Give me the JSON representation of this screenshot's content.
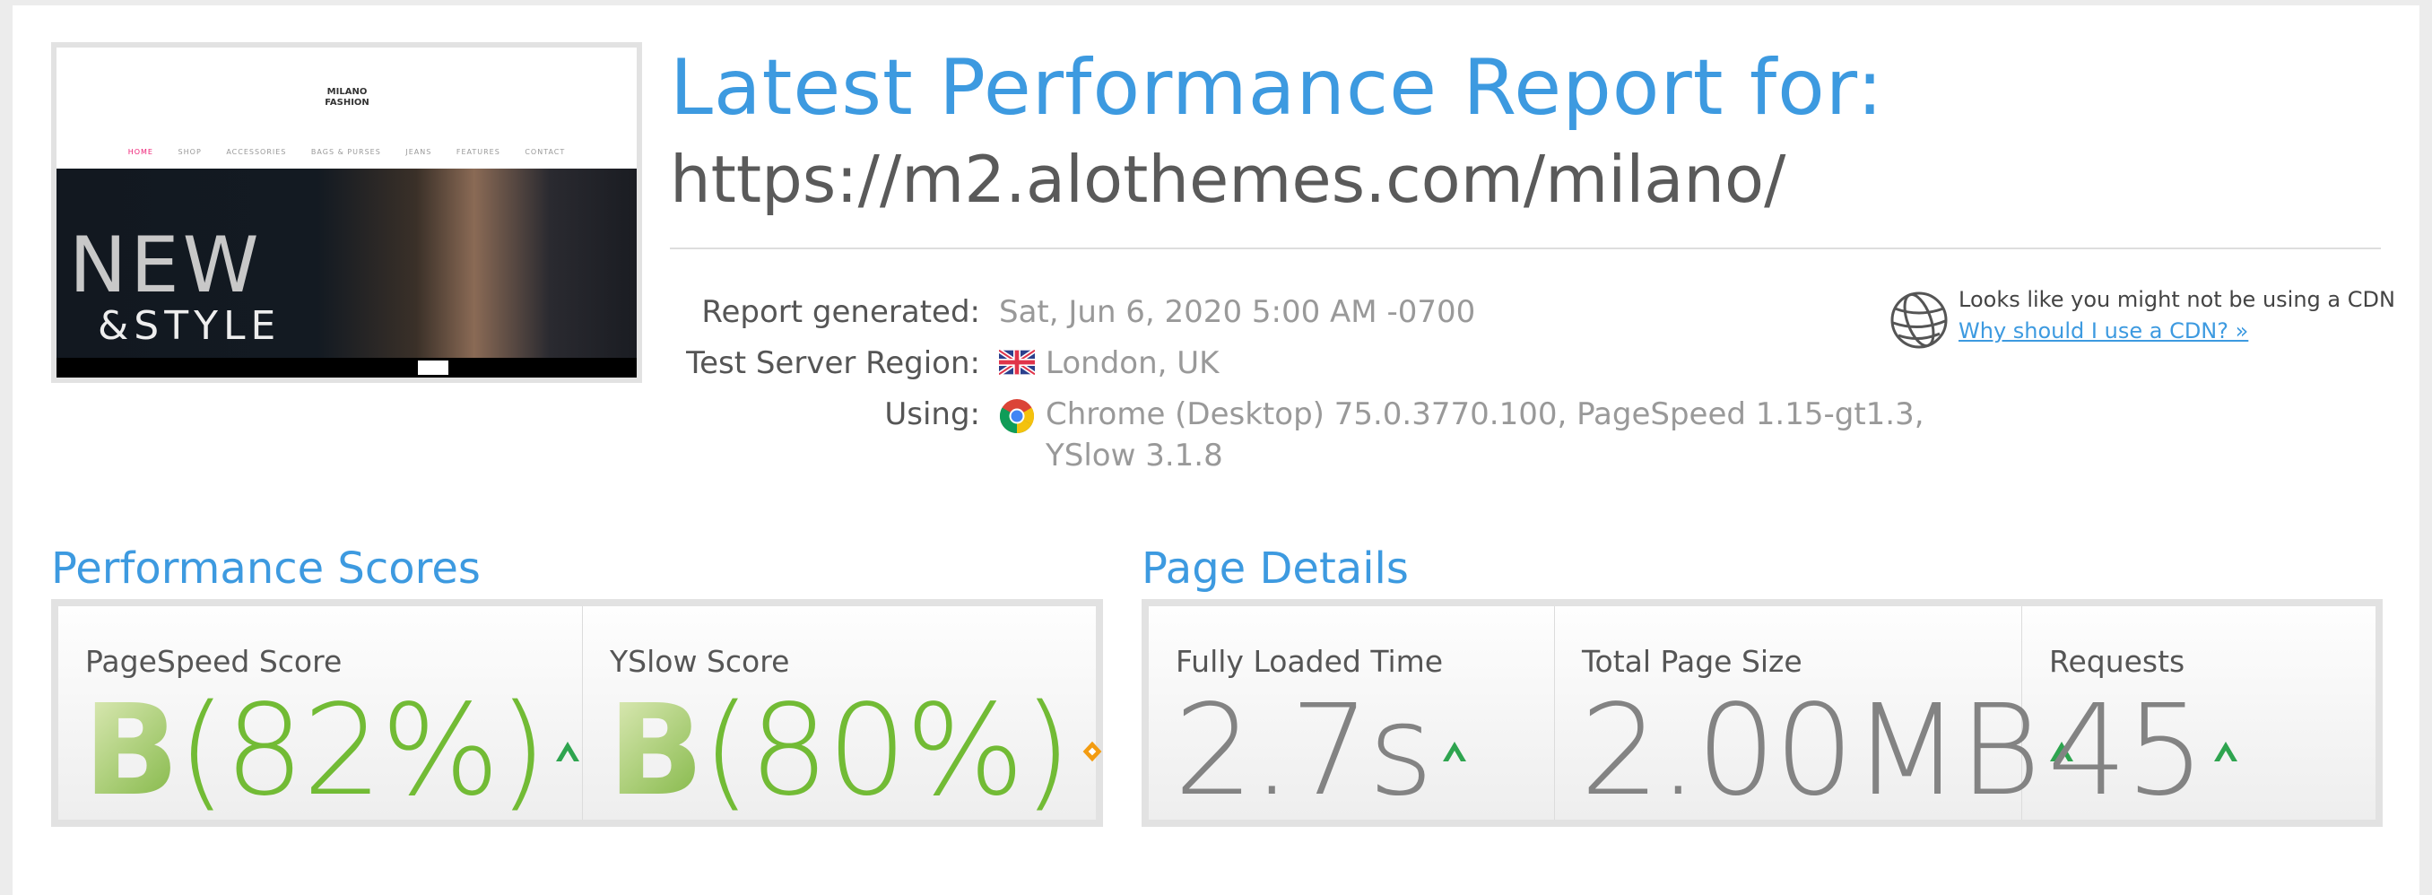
{
  "thumbnail": {
    "hero_line1": "NEW",
    "hero_line2": "&STYLE",
    "logo": "MILANO FASHION",
    "nav": [
      "HOME",
      "SHOP",
      "ACCESSORIES",
      "BAGS & PURSES",
      "JEANS",
      "FEATURES",
      "CONTACT"
    ]
  },
  "header": {
    "title": "Latest Performance Report for:",
    "url": "https://m2.alothemes.com/milano/"
  },
  "report": {
    "generated_label": "Report generated:",
    "generated_value": "Sat, Jun 6, 2020 5:00 AM -0700",
    "region_label": "Test Server Region:",
    "region_value": "London, UK",
    "region_icon": "uk-flag-icon",
    "using_label": "Using:",
    "using_value_line1": "Chrome (Desktop) 75.0.3770.100, PageSpeed 1.15-gt1.3,",
    "using_value_line2": "YSlow 3.1.8",
    "using_icon": "chrome-icon"
  },
  "cdn": {
    "icon": "globe-icon",
    "message": "Looks like you might not be using a CDN",
    "link": "Why should I use a CDN? »"
  },
  "performance": {
    "heading": "Performance Scores",
    "pagespeed": {
      "label": "PageSpeed Score",
      "grade": "B",
      "percent": "(82%)",
      "trend": "up"
    },
    "yslow": {
      "label": "YSlow Score",
      "grade": "B",
      "percent": "(80%)",
      "trend": "neutral"
    }
  },
  "details": {
    "heading": "Page Details",
    "load_time": {
      "label": "Fully Loaded Time",
      "value": "2.7s",
      "trend": "up"
    },
    "page_size": {
      "label": "Total Page Size",
      "value": "2.00MB",
      "trend": "up"
    },
    "requests": {
      "label": "Requests",
      "value": "45",
      "trend": "up"
    }
  },
  "colors": {
    "accent": "#3d9ae0",
    "grade_green": "#72bb35",
    "trend_up": "#2ea44f",
    "trend_neutral": "#f39c12"
  }
}
